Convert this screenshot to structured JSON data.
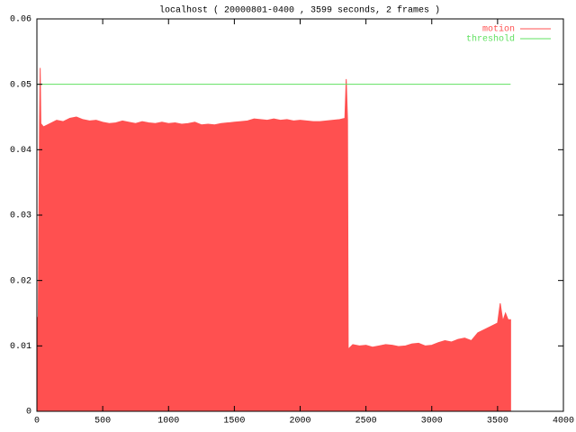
{
  "chart_data": {
    "type": "area",
    "title": "localhost ( 20000801-0400 , 3599 seconds, 2 frames )",
    "xlim": [
      0,
      4000
    ],
    "xticks": [
      0,
      500,
      1000,
      1500,
      2000,
      2500,
      3000,
      3500,
      4000
    ],
    "ylim": [
      0,
      0.06
    ],
    "yticks": [
      0,
      0.01,
      0.02,
      0.03,
      0.04,
      0.05,
      0.06
    ],
    "legend": "top-right",
    "series": [
      {
        "name": "motion",
        "color": "#ff5050",
        "x": [
          0,
          10,
          20,
          25,
          30,
          50,
          100,
          150,
          200,
          250,
          300,
          350,
          400,
          450,
          500,
          550,
          600,
          650,
          700,
          750,
          800,
          850,
          900,
          950,
          1000,
          1050,
          1100,
          1150,
          1200,
          1250,
          1300,
          1350,
          1400,
          1450,
          1500,
          1550,
          1600,
          1650,
          1700,
          1750,
          1800,
          1850,
          1900,
          1950,
          2000,
          2050,
          2100,
          2150,
          2200,
          2250,
          2300,
          2340,
          2350,
          2360,
          2365,
          2400,
          2450,
          2500,
          2550,
          2600,
          2650,
          2700,
          2750,
          2800,
          2850,
          2900,
          2950,
          3000,
          3050,
          3100,
          3150,
          3200,
          3250,
          3300,
          3350,
          3400,
          3450,
          3500,
          3520,
          3540,
          3560,
          3580,
          3599
        ],
        "values": [
          0.014,
          0.0145,
          0.044,
          0.0525,
          0.044,
          0.0435,
          0.044,
          0.0445,
          0.0443,
          0.0448,
          0.045,
          0.0446,
          0.0444,
          0.0445,
          0.0442,
          0.044,
          0.0441,
          0.0444,
          0.0442,
          0.044,
          0.0443,
          0.0441,
          0.044,
          0.0442,
          0.044,
          0.0441,
          0.0439,
          0.044,
          0.0442,
          0.0438,
          0.0439,
          0.0438,
          0.044,
          0.0441,
          0.0442,
          0.0443,
          0.0444,
          0.0447,
          0.0446,
          0.0445,
          0.0447,
          0.0445,
          0.0446,
          0.0444,
          0.0445,
          0.0444,
          0.0443,
          0.0443,
          0.0444,
          0.0445,
          0.0446,
          0.0448,
          0.0508,
          0.0445,
          0.0095,
          0.0102,
          0.01,
          0.0101,
          0.0098,
          0.01,
          0.0102,
          0.0101,
          0.0099,
          0.01,
          0.0103,
          0.0104,
          0.01,
          0.0101,
          0.0105,
          0.0108,
          0.0106,
          0.011,
          0.0112,
          0.0108,
          0.012,
          0.0125,
          0.013,
          0.0135,
          0.0165,
          0.0138,
          0.015,
          0.014,
          0.014
        ]
      },
      {
        "name": "threshold",
        "color": "#60e060",
        "x": [
          0,
          3599
        ],
        "values": [
          0.05,
          0.05
        ]
      }
    ]
  }
}
